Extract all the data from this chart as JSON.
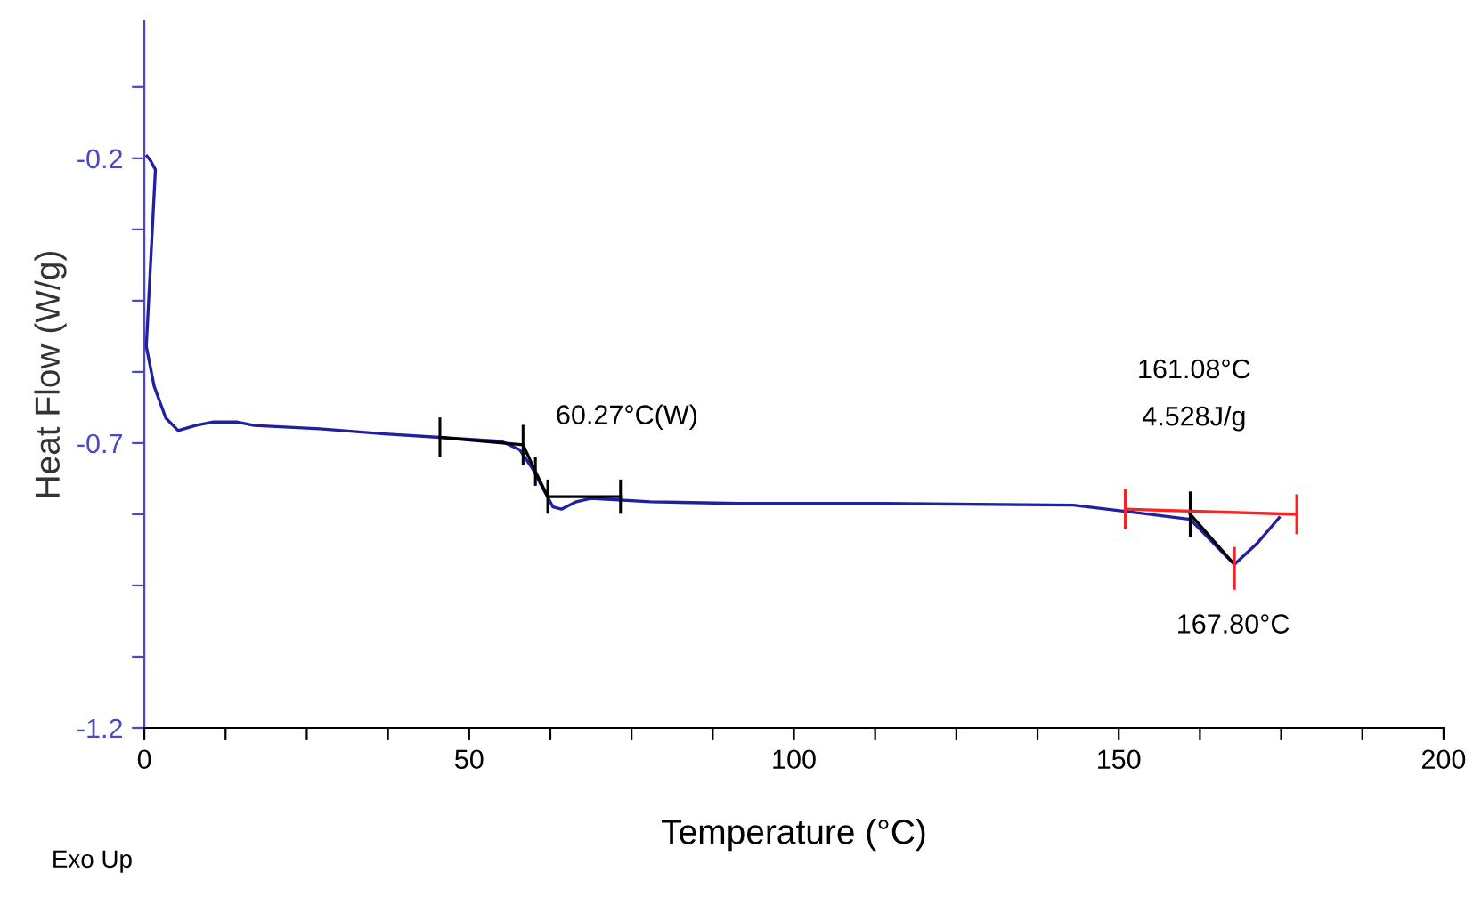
{
  "chart_data": {
    "type": "line",
    "xlabel": "Temperature (°C)",
    "ylabel": "Heat Flow (W/g)",
    "xlim": [
      0,
      200
    ],
    "ylim": [
      -1.2,
      0.04
    ],
    "xticks": [
      0,
      {
        "value": 12.5,
        "label": null
      },
      {
        "value": 25,
        "label": null
      },
      {
        "value": 37.5,
        "label": null
      },
      50,
      {
        "value": 62.5,
        "label": null
      },
      {
        "value": 75,
        "label": null
      },
      {
        "value": 87.5,
        "label": null
      },
      100,
      {
        "value": 112.5,
        "label": null
      },
      {
        "value": 125,
        "label": null
      },
      {
        "value": 137.5,
        "label": null
      },
      150,
      {
        "value": 162.5,
        "label": null
      },
      {
        "value": 175,
        "label": null
      },
      {
        "value": 187.5,
        "label": null
      },
      200
    ],
    "yticks": [
      -1.2,
      {
        "value": -1.075,
        "label": null
      },
      {
        "value": -0.95,
        "label": null
      },
      {
        "value": -0.825,
        "label": null
      },
      -0.7,
      {
        "value": -0.575,
        "label": null
      },
      {
        "value": -0.45,
        "label": null
      },
      {
        "value": -0.325,
        "label": null
      },
      -0.2,
      {
        "value": -0.075,
        "label": null
      }
    ],
    "series": [
      {
        "color": "#2020a0",
        "x": [
          0.4,
          1,
          1.7,
          0.3,
          1.5,
          3.3,
          5.2,
          7.9,
          10.6,
          14.2,
          16.9,
          27,
          37,
          45.5,
          55,
          57.8,
          59.7,
          61,
          62.9,
          64.2,
          66.5,
          68.7,
          77.9,
          91.5,
          114,
          143,
          150.4,
          161,
          164,
          167.8,
          171.4,
          174.7
        ],
        "values": [
          -0.196,
          -0.205,
          -0.22,
          -0.53,
          -0.6,
          -0.656,
          -0.678,
          -0.669,
          -0.663,
          -0.663,
          -0.669,
          -0.675,
          -0.684,
          -0.69,
          -0.697,
          -0.712,
          -0.744,
          -0.772,
          -0.812,
          -0.816,
          -0.803,
          -0.797,
          -0.803,
          -0.806,
          -0.806,
          -0.809,
          -0.819,
          -0.834,
          -0.869,
          -0.913,
          -0.875,
          -0.831
        ]
      },
      {
        "color": "#000000",
        "x": [
          45.5,
          58.3,
          60.2,
          62.1,
          73.3
        ],
        "values": [
          -0.69,
          -0.703,
          -0.75,
          -0.794,
          -0.794
        ],
        "errors": [
          0.035,
          0.035,
          0.025,
          0.03,
          0.03
        ]
      },
      {
        "color": "#000000",
        "x": [
          161,
          167.8
        ],
        "values": [
          -0.825,
          -0.913
        ],
        "errors": [
          0.04,
          null
        ]
      },
      {
        "color": "#ff2020",
        "x": [
          151,
          177.4
        ],
        "values": [
          -0.816,
          -0.825
        ],
        "errors": [
          0.035,
          0.035
        ]
      },
      {
        "color": "#ff2020",
        "x": [
          167.8,
          167.8
        ],
        "values": [
          -0.885,
          -0.955
        ]
      }
    ],
    "annotations": [
      {
        "text": "60.27°C(W)",
        "x": 60.27,
        "y": -0.75
      },
      "161.08°C",
      "4.528J/g",
      "167.80°C",
      "Exo Up"
    ]
  }
}
